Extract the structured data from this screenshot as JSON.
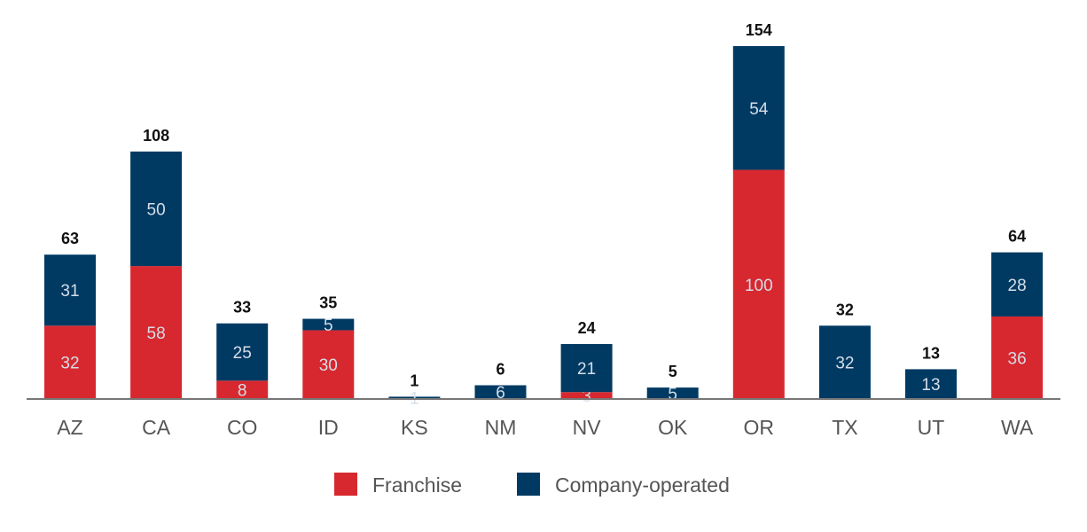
{
  "chart_data": {
    "type": "bar",
    "stacked": true,
    "title": "",
    "xlabel": "",
    "ylabel": "",
    "ylim": [
      0,
      154
    ],
    "grid": false,
    "legend_position": "bottom",
    "categories": [
      "AZ",
      "CA",
      "CO",
      "ID",
      "KS",
      "NM",
      "NV",
      "OK",
      "OR",
      "TX",
      "UT",
      "WA"
    ],
    "series": [
      {
        "name": "Franchise",
        "color": "#d7282f",
        "values": [
          32,
          58,
          8,
          30,
          0,
          0,
          3,
          0,
          100,
          0,
          0,
          36
        ]
      },
      {
        "name": "Company-operated",
        "color": "#003a63",
        "values": [
          31,
          50,
          25,
          5,
          1,
          6,
          21,
          5,
          54,
          32,
          13,
          28
        ]
      }
    ],
    "totals": [
      63,
      108,
      33,
      35,
      1,
      6,
      24,
      5,
      154,
      32,
      13,
      64
    ]
  }
}
